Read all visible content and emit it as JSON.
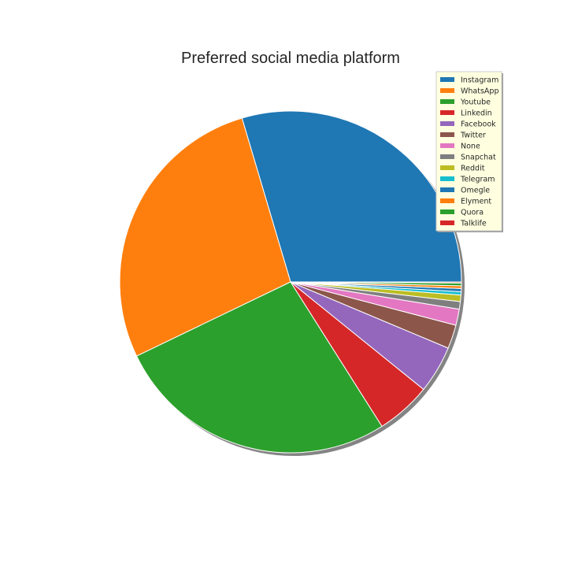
{
  "chart_data": {
    "type": "pie",
    "title": "Preferred social media platform",
    "shadow": true,
    "legend_position": "top-right",
    "start_angle_deg": 0,
    "direction": "counterclockwise",
    "slices": [
      {
        "label": "Instagram",
        "value": 29.0,
        "color": "#1f77b4"
      },
      {
        "label": "WhatsApp",
        "value": 27.0,
        "color": "#ff7f0e"
      },
      {
        "label": "Youtube",
        "value": 26.3,
        "color": "#2ca02c"
      },
      {
        "label": "Linkedin",
        "value": 5.1,
        "color": "#d62728"
      },
      {
        "label": "Facebook",
        "value": 4.4,
        "color": "#9467bd"
      },
      {
        "label": "Twitter",
        "value": 2.2,
        "color": "#8c564b"
      },
      {
        "label": "None",
        "value": 1.5,
        "color": "#e377c2"
      },
      {
        "label": "Snapchat",
        "value": 0.7,
        "color": "#7f7f7f"
      },
      {
        "label": "Reddit",
        "value": 0.6,
        "color": "#bcbd22"
      },
      {
        "label": "Telegram",
        "value": 0.3,
        "color": "#17becf"
      },
      {
        "label": "Omegle",
        "value": 0.3,
        "color": "#1f77b4"
      },
      {
        "label": "Elyment",
        "value": 0.25,
        "color": "#ff7f0e"
      },
      {
        "label": "Quora",
        "value": 0.25,
        "color": "#2ca02c"
      },
      {
        "label": "Talklife",
        "value": 0.1,
        "color": "#d62728"
      }
    ]
  }
}
